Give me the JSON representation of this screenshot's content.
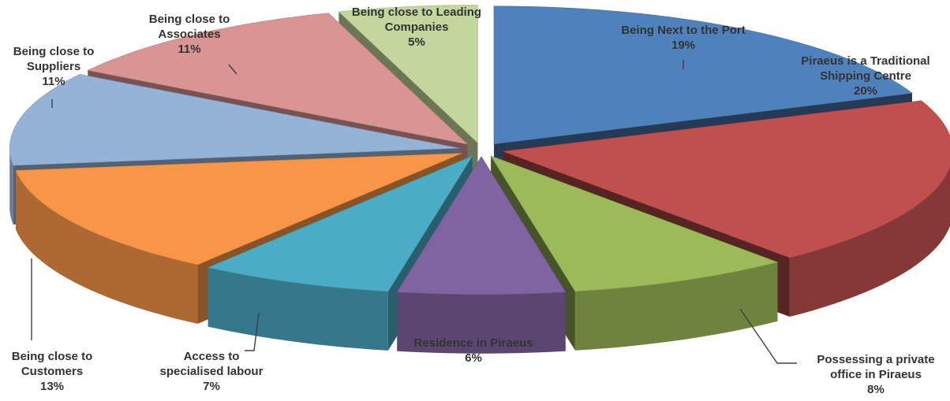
{
  "chart_data": {
    "type": "pie",
    "title": "",
    "unit": "%",
    "slices": [
      {
        "label_lines": [
          "Being Next to the Port"
        ],
        "pct_text": "19%",
        "value": 19,
        "color": "#4f81bd"
      },
      {
        "label_lines": [
          "Piraeus is a Traditional",
          "Shipping Centre"
        ],
        "pct_text": "20%",
        "value": 20,
        "color": "#c0504d"
      },
      {
        "label_lines": [
          "Possessing a private",
          "office in Piraeus"
        ],
        "pct_text": "8%",
        "value": 8,
        "color": "#9bbb59"
      },
      {
        "label_lines": [
          "Residence in Piraeus"
        ],
        "pct_text": "6%",
        "value": 6,
        "color": "#8064a2"
      },
      {
        "label_lines": [
          "Access to",
          "specialised labour"
        ],
        "pct_text": "7%",
        "value": 7,
        "color": "#4bacc6"
      },
      {
        "label_lines": [
          "Being close to",
          "Customers"
        ],
        "pct_text": "13%",
        "value": 13,
        "color": "#f79646"
      },
      {
        "label_lines": [
          "Being close to",
          "Suppliers"
        ],
        "pct_text": "11%",
        "value": 11,
        "color": "#95b3d7"
      },
      {
        "label_lines": [
          "Being close to",
          "Associates"
        ],
        "pct_text": "11%",
        "value": 11,
        "color": "#d99594"
      },
      {
        "label_lines": [
          "Being close to Leading",
          "Companies"
        ],
        "pct_text": "5%",
        "value": 5,
        "color": "#c3d69b"
      }
    ]
  }
}
